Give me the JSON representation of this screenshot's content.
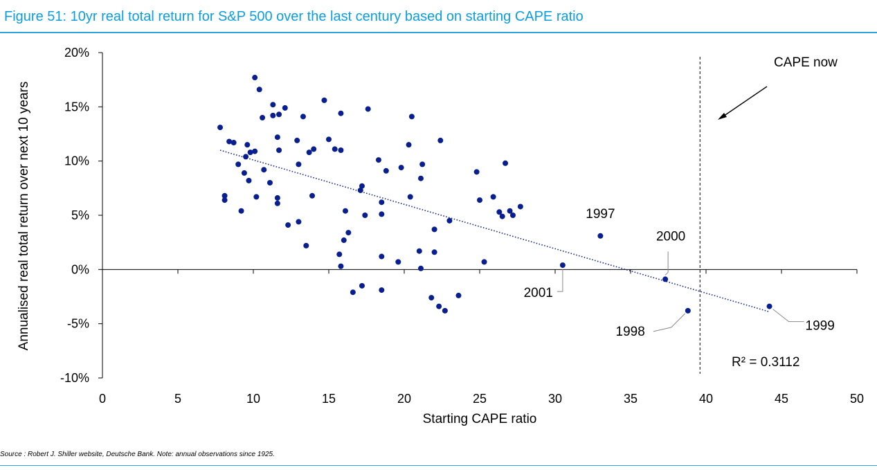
{
  "figure": {
    "title": "Figure 51: 10yr real total return for S&P 500 over the last century based on starting CAPE ratio",
    "source": "Source : Robert J. Shiller website, Deutsche Bank. Note: annual observations since 1925."
  },
  "colors": {
    "accent": "#0a9ee0",
    "points": "#0a1f8f",
    "trend": "#0a1f8f",
    "rule": "#2aa6dd"
  },
  "chart_data": {
    "type": "scatter",
    "title": "10yr real total return for S&P 500 over the last century based on starting CAPE ratio",
    "xlabel": "Starting CAPE ratio",
    "ylabel": "Annualised real total return over next 10 years",
    "xlim": [
      0,
      50
    ],
    "ylim": [
      -10,
      20
    ],
    "x_ticks": [
      "0",
      "5",
      "10",
      "15",
      "20",
      "25",
      "30",
      "35",
      "40",
      "45",
      "50"
    ],
    "y_ticks": [
      "20%",
      "15%",
      "10%",
      "5%",
      "0%",
      "-5%",
      "-10%"
    ],
    "y_tick_values": [
      20,
      15,
      10,
      5,
      0,
      -5,
      -10
    ],
    "x_tick_values": [
      0,
      5,
      10,
      15,
      20,
      25,
      30,
      35,
      40,
      45,
      50
    ],
    "points": [
      [
        7.8,
        13.1
      ],
      [
        8.1,
        6.8
      ],
      [
        8.1,
        6.4
      ],
      [
        8.4,
        11.8
      ],
      [
        8.7,
        11.7
      ],
      [
        9.0,
        9.7
      ],
      [
        9.2,
        5.4
      ],
      [
        9.4,
        8.9
      ],
      [
        9.5,
        10.4
      ],
      [
        9.6,
        11.5
      ],
      [
        9.7,
        8.2
      ],
      [
        9.8,
        10.8
      ],
      [
        10.1,
        10.9
      ],
      [
        10.1,
        17.7
      ],
      [
        10.2,
        6.7
      ],
      [
        10.4,
        16.6
      ],
      [
        10.6,
        14.0
      ],
      [
        10.7,
        9.2
      ],
      [
        11.1,
        8.0
      ],
      [
        11.3,
        14.2
      ],
      [
        11.3,
        15.2
      ],
      [
        11.6,
        12.2
      ],
      [
        11.6,
        6.6
      ],
      [
        11.6,
        6.1
      ],
      [
        11.7,
        11.0
      ],
      [
        11.7,
        14.3
      ],
      [
        12.1,
        14.9
      ],
      [
        12.3,
        4.1
      ],
      [
        12.9,
        11.9
      ],
      [
        13.0,
        4.4
      ],
      [
        13.0,
        9.7
      ],
      [
        13.3,
        14.1
      ],
      [
        13.5,
        2.2
      ],
      [
        13.7,
        10.8
      ],
      [
        13.9,
        6.8
      ],
      [
        14.0,
        11.1
      ],
      [
        14.7,
        15.6
      ],
      [
        15.0,
        12.0
      ],
      [
        15.4,
        11.1
      ],
      [
        15.7,
        1.4
      ],
      [
        15.8,
        11.0
      ],
      [
        15.8,
        14.4
      ],
      [
        15.8,
        0.3
      ],
      [
        16.0,
        2.7
      ],
      [
        16.1,
        5.4
      ],
      [
        16.3,
        3.4
      ],
      [
        16.6,
        -2.1
      ],
      [
        17.1,
        7.3
      ],
      [
        17.2,
        -1.5
      ],
      [
        17.2,
        7.7
      ],
      [
        17.4,
        5.0
      ],
      [
        17.6,
        14.8
      ],
      [
        18.3,
        10.1
      ],
      [
        18.5,
        5.1
      ],
      [
        18.5,
        6.2
      ],
      [
        18.5,
        1.2
      ],
      [
        18.5,
        -1.9
      ],
      [
        18.8,
        9.1
      ],
      [
        19.6,
        0.7
      ],
      [
        19.8,
        9.4
      ],
      [
        20.3,
        11.5
      ],
      [
        20.4,
        6.7
      ],
      [
        20.5,
        14.1
      ],
      [
        21.0,
        1.7
      ],
      [
        21.1,
        8.4
      ],
      [
        21.1,
        0.1
      ],
      [
        21.2,
        9.7
      ],
      [
        21.8,
        -2.6
      ],
      [
        22.0,
        1.6
      ],
      [
        22.0,
        3.7
      ],
      [
        22.3,
        -3.4
      ],
      [
        22.4,
        11.9
      ],
      [
        22.7,
        -3.8
      ],
      [
        23.0,
        4.5
      ],
      [
        23.6,
        -2.4
      ],
      [
        24.8,
        9.0
      ],
      [
        25.0,
        6.4
      ],
      [
        25.3,
        0.7
      ],
      [
        25.9,
        6.7
      ],
      [
        26.3,
        5.3
      ],
      [
        26.5,
        4.9
      ],
      [
        26.7,
        9.8
      ],
      [
        27.0,
        5.4
      ],
      [
        27.2,
        5.0
      ],
      [
        27.7,
        5.8
      ],
      [
        30.5,
        0.4
      ],
      [
        33.0,
        3.1
      ],
      [
        37.3,
        -0.9
      ],
      [
        38.8,
        -3.8
      ],
      [
        44.2,
        -3.4
      ]
    ],
    "trendline": {
      "x": [
        7.8,
        44.2
      ],
      "y": [
        11.0,
        -3.9
      ],
      "style": "dotted"
    },
    "r_squared_label": "R² = 0.3112",
    "vertical_marker": {
      "x": 39.6,
      "style": "dashed",
      "label": "CAPE now"
    },
    "annotations": [
      {
        "label": "1997",
        "x": 33.0,
        "y": 3.1
      },
      {
        "label": "2000",
        "x": 37.3,
        "y": -0.9
      },
      {
        "label": "2001",
        "x": 30.5,
        "y": 0.4
      },
      {
        "label": "1998",
        "x": 38.8,
        "y": -3.8
      },
      {
        "label": "1999",
        "x": 44.2,
        "y": -3.4
      }
    ]
  }
}
